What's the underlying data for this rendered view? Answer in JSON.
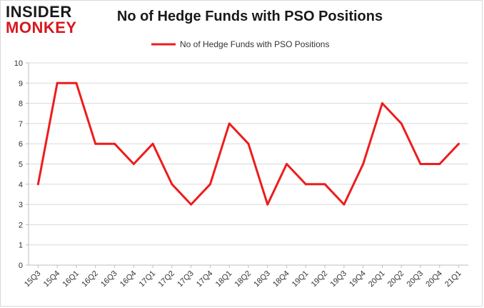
{
  "brand": {
    "line1": "INSIDER",
    "line2": "MONKEY"
  },
  "chart_data": {
    "type": "line",
    "title": "No of Hedge Funds with PSO Positions",
    "xlabel": "",
    "ylabel": "",
    "ylim": [
      0,
      10
    ],
    "yticks": [
      0,
      1,
      2,
      3,
      4,
      5,
      6,
      7,
      8,
      9,
      10
    ],
    "grid": true,
    "legend_position": "top-center",
    "categories": [
      "15Q3",
      "15Q4",
      "16Q1",
      "16Q2",
      "16Q3",
      "16Q4",
      "17Q1",
      "17Q2",
      "17Q3",
      "17Q4",
      "18Q1",
      "18Q2",
      "18Q3",
      "18Q4",
      "19Q1",
      "19Q2",
      "19Q3",
      "19Q4",
      "20Q1",
      "20Q2",
      "20Q3",
      "20Q4",
      "21Q1"
    ],
    "series": [
      {
        "name": "No of Hedge Funds with PSO Positions",
        "color": "#ee1c1c",
        "values": [
          4,
          9,
          9,
          6,
          6,
          5,
          6,
          4,
          3,
          4,
          7,
          6,
          3,
          5,
          4,
          4,
          3,
          5,
          8,
          7,
          5,
          5,
          6
        ]
      }
    ]
  }
}
